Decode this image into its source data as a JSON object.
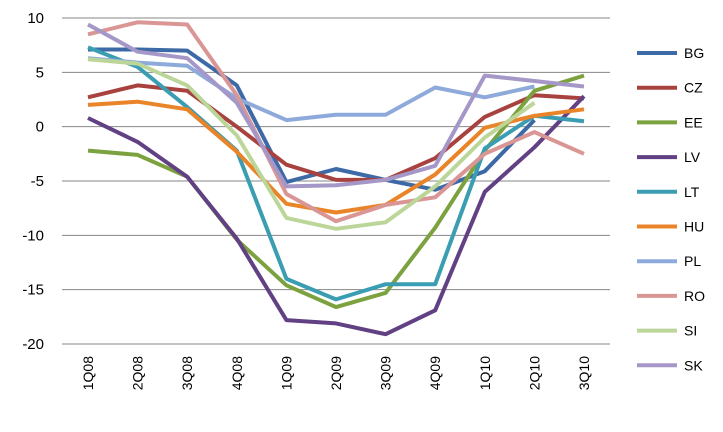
{
  "chart_data": {
    "type": "line",
    "title": "",
    "xlabel": "",
    "ylabel": "",
    "categories": [
      "1Q08",
      "2Q08",
      "3Q08",
      "4Q08",
      "1Q09",
      "2Q09",
      "3Q09",
      "4Q09",
      "1Q10",
      "2Q10",
      "3Q10"
    ],
    "ylim": [
      -20,
      10
    ],
    "yticks": [
      10,
      5,
      0,
      -5,
      -10,
      -15,
      -20
    ],
    "ytick_labels": [
      "10",
      "5",
      "0",
      "-5",
      "-10",
      "-15",
      "-20"
    ],
    "grid": true,
    "legend_position": "right",
    "series": [
      {
        "name": "BG",
        "color": "#3d6aa7",
        "values": [
          7.1,
          7.1,
          7.0,
          3.8,
          -5.1,
          -3.9,
          -4.9,
          -5.8,
          -4.1,
          0.6,
          null
        ]
      },
      {
        "name": "CZ",
        "color": "#a8423e",
        "values": [
          2.7,
          3.8,
          3.3,
          0.0,
          -3.5,
          -4.9,
          -4.9,
          -2.9,
          0.9,
          2.9,
          2.6
        ]
      },
      {
        "name": "EE",
        "color": "#7ba23f",
        "values": [
          -2.2,
          -2.6,
          -4.6,
          -10.4,
          -14.6,
          -16.6,
          -15.3,
          -9.3,
          -2.2,
          3.3,
          4.7
        ]
      },
      {
        "name": "LV",
        "color": "#614084",
        "values": [
          0.8,
          -1.4,
          -4.6,
          -10.3,
          -17.8,
          -18.1,
          -19.1,
          -16.9,
          -6.0,
          -1.9,
          2.8
        ]
      },
      {
        "name": "LT",
        "color": "#3a9db1",
        "values": [
          7.3,
          5.5,
          1.8,
          -2.2,
          -14.0,
          -15.9,
          -14.5,
          -14.5,
          -2.0,
          1.0,
          0.5
        ]
      },
      {
        "name": "HU",
        "color": "#e98428",
        "values": [
          2.0,
          2.3,
          1.6,
          -2.3,
          -7.1,
          -7.9,
          -7.2,
          -4.4,
          -0.1,
          1.0,
          1.6
        ]
      },
      {
        "name": "PL",
        "color": "#8eaadb",
        "values": [
          6.3,
          5.9,
          5.6,
          2.6,
          0.6,
          1.1,
          1.1,
          3.6,
          2.7,
          3.7,
          null
        ]
      },
      {
        "name": "RO",
        "color": "#d99694",
        "values": [
          8.5,
          9.6,
          9.4,
          2.9,
          -6.2,
          -8.7,
          -7.2,
          -6.5,
          -2.5,
          -0.5,
          -2.5
        ]
      },
      {
        "name": "SI",
        "color": "#bcd699",
        "values": [
          6.2,
          5.8,
          3.8,
          -0.8,
          -8.4,
          -9.4,
          -8.8,
          -5.5,
          -1.0,
          2.2,
          null
        ]
      },
      {
        "name": "SK",
        "color": "#a597c7",
        "values": [
          9.4,
          6.9,
          6.3,
          2.2,
          -5.5,
          -5.4,
          -4.9,
          -3.6,
          4.7,
          4.2,
          3.7
        ]
      }
    ]
  }
}
